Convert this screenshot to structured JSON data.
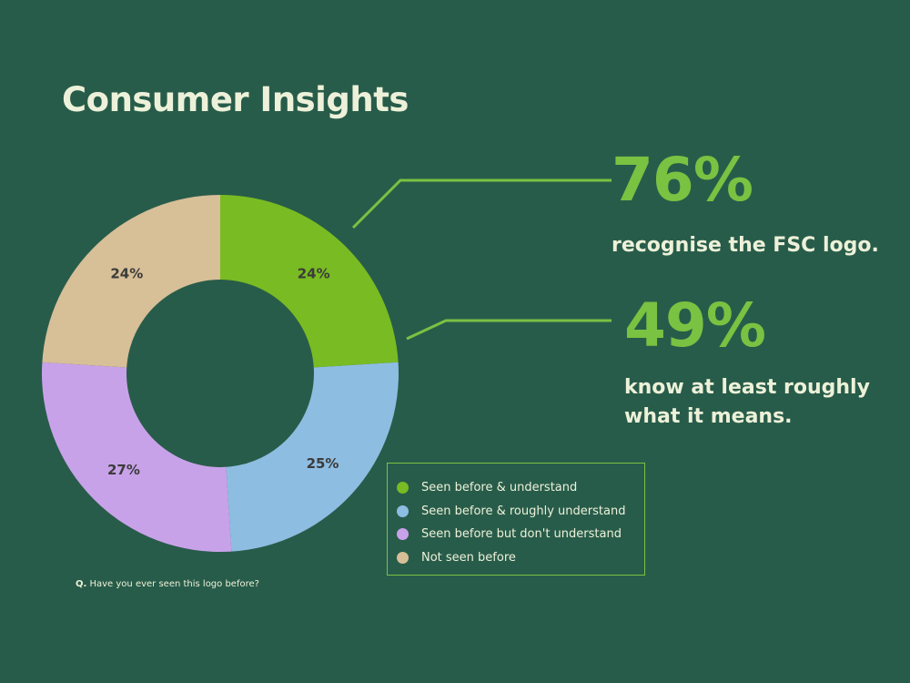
{
  "title": "Consumer Insights",
  "stats": [
    {
      "value": "76%",
      "text": "recognise the FSC logo."
    },
    {
      "value": "49%",
      "text": "know at least roughly what it means."
    }
  ],
  "footnote": {
    "prefix": "Q.",
    "text": " Have you ever seen this logo before?"
  },
  "colors": {
    "background": "#285c4a",
    "accent": "#79c242",
    "text": "#edf1d9",
    "label": "#3b3b3b"
  },
  "chart_data": {
    "type": "pie",
    "donut": true,
    "start": "top, clockwise",
    "legend_placement": "bottom-right",
    "series": [
      {
        "name": "Seen before & understand",
        "value": 24,
        "label": "24%",
        "color": "#79bb22"
      },
      {
        "name": "Seen before & roughly understand",
        "value": 25,
        "label": "25%",
        "color": "#8ebde2"
      },
      {
        "name": "Seen before but don't understand",
        "value": 27,
        "label": "27%",
        "color": "#c8a2e9"
      },
      {
        "name": "Not seen before",
        "value": 24,
        "label": "24%",
        "color": "#d7bf97"
      }
    ]
  }
}
